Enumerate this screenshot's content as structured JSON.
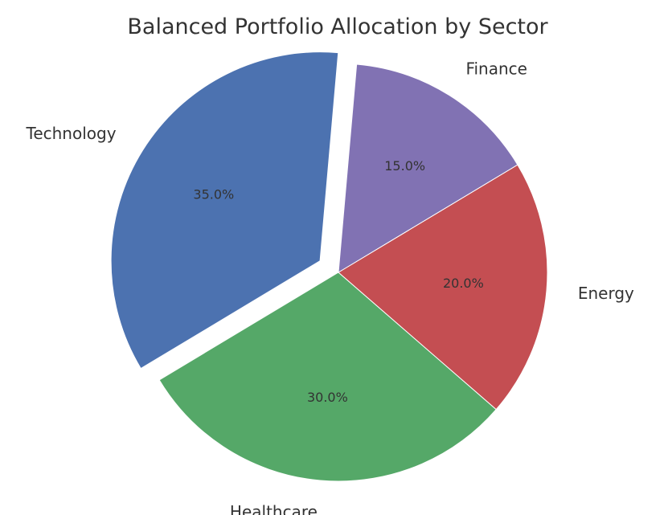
{
  "chart_data": {
    "type": "pie",
    "title": "Balanced Portfolio Allocation by Sector",
    "categories": [
      "Technology",
      "Healthcare",
      "Energy",
      "Finance"
    ],
    "values": [
      35.0,
      30.0,
      20.0,
      15.0
    ],
    "value_labels": [
      "35.0%",
      "30.0%",
      "20.0%",
      "15.0%"
    ],
    "colors": [
      "#4c72b0",
      "#55a868",
      "#c44e52",
      "#8172b3"
    ],
    "exploded": [
      "Technology"
    ],
    "legend": "none",
    "grid": false
  }
}
